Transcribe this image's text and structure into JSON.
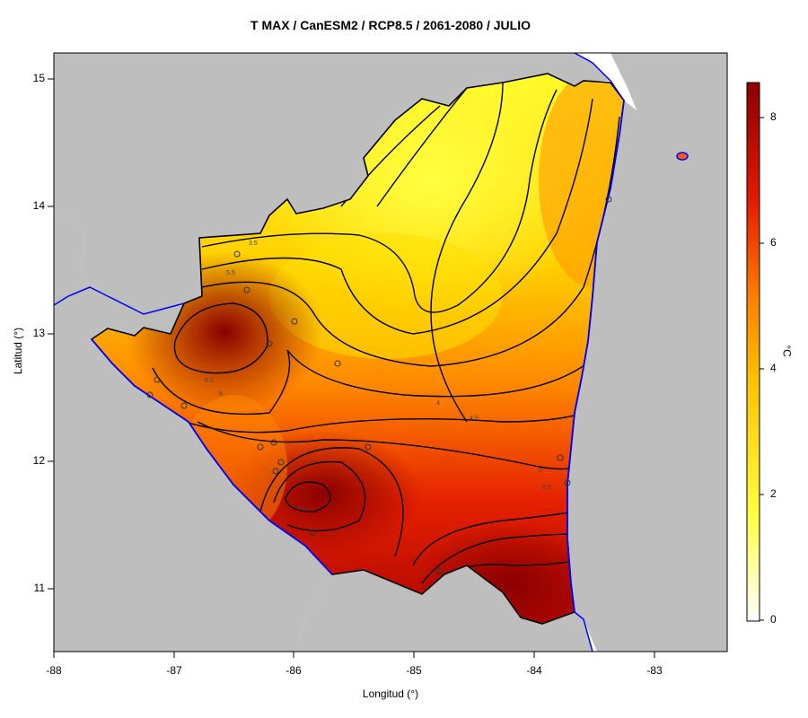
{
  "map": {
    "title": "T MAX / CanESM2 / RCP8.5 / 2061-2080 / JULIO",
    "xlabel": "Longitud (°)",
    "ylabel": "Latitud (°)",
    "x_ticks": [
      "-88",
      "-87",
      "-86",
      "-85",
      "-84",
      "-83"
    ],
    "y_ticks": [
      "15",
      "14",
      "13",
      "12",
      "11"
    ],
    "colorbar": {
      "unit": "°C",
      "ticks": [
        "8",
        "6",
        "4",
        "2",
        "0"
      ],
      "range": [
        0,
        8.5
      ],
      "colors": [
        "#ffffff",
        "#ffff33",
        "#ffc000",
        "#ff7700",
        "#e51a00",
        "#8b0000"
      ]
    },
    "contour_labels": [
      "3.5",
      "5.5",
      "6.5",
      "6",
      "4",
      "4.5",
      "6",
      "6.5",
      "7.5"
    ],
    "land_color": "#bebebe",
    "coast_color": "#0000ff"
  }
}
